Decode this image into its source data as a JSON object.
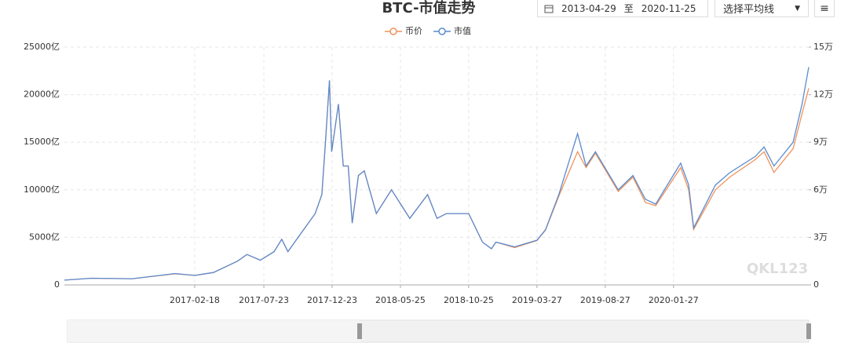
{
  "controls": {
    "start_date": "2013-04-29",
    "separator": "至",
    "end_date": "2020-11-25",
    "average_select": "选择平均线"
  },
  "watermark": "QKL123",
  "chart_data": {
    "type": "line",
    "title": "BTC-市值走势",
    "x": [
      "2016-05-02",
      "2016-07-01",
      "2016-10-01",
      "2017-01-05",
      "2017-02-18",
      "2017-04-01",
      "2017-05-25",
      "2017-06-15",
      "2017-07-15",
      "2017-08-15",
      "2017-09-01",
      "2017-09-15",
      "2017-10-20",
      "2017-11-15",
      "2017-11-30",
      "2017-12-08",
      "2017-12-17",
      "2017-12-22",
      "2018-01-06",
      "2018-01-17",
      "2018-01-28",
      "2018-02-06",
      "2018-02-20",
      "2018-03-05",
      "2018-04-01",
      "2018-05-05",
      "2018-06-15",
      "2018-07-25",
      "2018-08-15",
      "2018-09-05",
      "2018-10-25",
      "2018-11-25",
      "2018-12-15",
      "2018-12-25",
      "2019-02-05",
      "2019-03-27",
      "2019-04-15",
      "2019-05-15",
      "2019-06-26",
      "2019-07-15",
      "2019-08-05",
      "2019-09-25",
      "2019-10-28",
      "2019-11-25",
      "2019-12-18",
      "2020-02-12",
      "2020-03-01",
      "2020-03-12",
      "2020-04-30",
      "2020-06-01",
      "2020-07-28",
      "2020-08-17",
      "2020-09-08",
      "2020-10-21",
      "2020-11-10",
      "2020-11-25"
    ],
    "series": [
      {
        "name": "币价",
        "color": "#f0935a",
        "axis": "y2",
        "values": [
          3000,
          4200,
          3900,
          7000,
          6000,
          7800,
          15000,
          19200,
          15600,
          21000,
          28800,
          21000,
          34800,
          45000,
          57000,
          90000,
          129000,
          84000,
          114000,
          75000,
          75000,
          39000,
          69000,
          72000,
          45000,
          60000,
          42000,
          57000,
          42000,
          45000,
          45000,
          27000,
          22800,
          27000,
          23500,
          28000,
          34500,
          56000,
          84000,
          74000,
          83000,
          59000,
          68000,
          52000,
          50000,
          74000,
          60000,
          35000,
          60000,
          68000,
          79000,
          84000,
          71000,
          86000,
          108000,
          124000
        ]
      },
      {
        "name": "市值",
        "color": "#5b8bd0",
        "values": [
          500,
          700,
          650,
          1200,
          1000,
          1300,
          2500,
          3200,
          2600,
          3500,
          4800,
          3500,
          5800,
          7500,
          9500,
          15000,
          21500,
          14000,
          19000,
          12500,
          12500,
          6500,
          11500,
          12000,
          7500,
          10000,
          7000,
          9500,
          7000,
          7500,
          7500,
          4500,
          3800,
          4500,
          4000,
          4700,
          5800,
          9500,
          15900,
          12500,
          14000,
          10000,
          11500,
          9000,
          8500,
          12800,
          10500,
          6000,
          10500,
          11800,
          13500,
          14500,
          12500,
          15000,
          19000,
          22900
        ]
      }
    ],
    "xlim": [
      "2016-05-02",
      "2020-11-25"
    ],
    "xticks": [
      "2017-02-18",
      "2017-07-23",
      "2017-12-23",
      "2018-05-25",
      "2018-10-25",
      "2019-03-27",
      "2019-08-27",
      "2020-01-27"
    ],
    "ylim": [
      0,
      25000
    ],
    "yticks": [
      0,
      {
        "value": 5000,
        "label": "5000亿"
      },
      {
        "value": 10000,
        "label": "10000亿"
      },
      {
        "value": 15000,
        "label": "15000亿"
      },
      {
        "value": 20000,
        "label": "20000亿"
      },
      {
        "value": 25000,
        "label": "25000亿"
      }
    ],
    "y2lim": [
      0,
      150000
    ],
    "y2ticks": [
      0,
      {
        "value": 30000,
        "label": "3万"
      },
      {
        "value": 60000,
        "label": "6万"
      },
      {
        "value": 90000,
        "label": "9万"
      },
      {
        "value": 120000,
        "label": "12万"
      },
      {
        "value": 150000,
        "label": "15万"
      }
    ],
    "grid": true,
    "legend": "top"
  }
}
